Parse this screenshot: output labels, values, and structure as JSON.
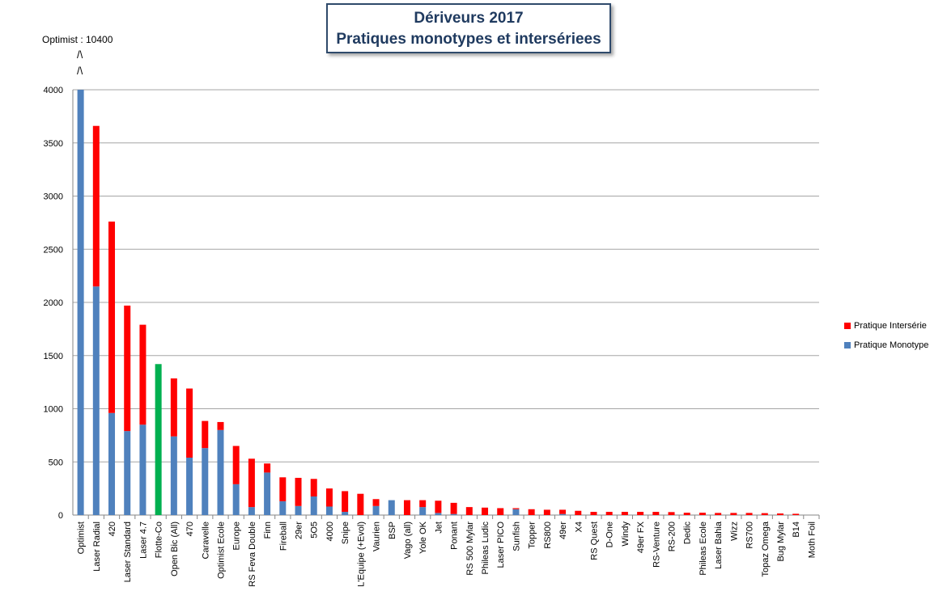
{
  "chart_data": {
    "type": "bar",
    "stacked": true,
    "title": "Dériveurs 2017",
    "subtitle": "Pratiques monotypes et intersériees",
    "note": "Optimist : 10400",
    "note_arrow": "/\\",
    "ylim": [
      0,
      4000
    ],
    "yticks": [
      0,
      500,
      1000,
      1500,
      2000,
      2500,
      3000,
      3500,
      4000
    ],
    "grid": true,
    "legend_placement": "right",
    "categories": [
      "Optimist",
      "Laser Radial",
      "420",
      "Laser Standard",
      "Laser 4.7",
      "Flotte-Co",
      "Open Bic (All)",
      "470",
      "Caravelle",
      "Optimist Ecole",
      "Europe",
      "RS Feva Double",
      "Finn",
      "Fireball",
      "29er",
      "5O5",
      "4000",
      "Snipe",
      "L'Equipe (+Evol)",
      "Vaurien",
      "BSP",
      "Vago (all)",
      "Yole OK",
      "Jet",
      "Ponant",
      "RS 500 Mylar",
      "Phileas Ludic",
      "Laser PICO",
      "Sunfish",
      "Topper",
      "RS800",
      "49er",
      "X4",
      "RS Quest",
      "D-One",
      "Windy",
      "49er FX",
      "RS-Venture",
      "RS-200",
      "Dedic",
      "Phileas Ecole",
      "Laser Bahia",
      "Wizz",
      "RS700",
      "Topaz Omega",
      "Bug Mylar",
      "B14",
      "Moth Foil"
    ],
    "series": [
      {
        "name": "Pratique Monotype",
        "color": "#4f81bd",
        "values": [
          4000,
          2150,
          960,
          790,
          850,
          0,
          740,
          540,
          630,
          800,
          290,
          75,
          400,
          130,
          85,
          175,
          80,
          30,
          0,
          85,
          140,
          0,
          75,
          20,
          10,
          0,
          0,
          0,
          55,
          0,
          0,
          10,
          0,
          0,
          0,
          0,
          0,
          0,
          0,
          0,
          0,
          0,
          0,
          0,
          0,
          0,
          0,
          0
        ]
      },
      {
        "name": "Pratique Intersérie",
        "color": "#ff0000",
        "values": [
          0,
          1510,
          1800,
          1180,
          940,
          0,
          545,
          650,
          255,
          75,
          360,
          455,
          85,
          225,
          265,
          165,
          170,
          195,
          200,
          65,
          0,
          140,
          65,
          115,
          105,
          75,
          70,
          65,
          10,
          55,
          50,
          40,
          40,
          30,
          30,
          30,
          30,
          30,
          28,
          22,
          22,
          20,
          20,
          20,
          18,
          15,
          12,
          0
        ]
      },
      {
        "name": "Flotte-Co",
        "color": "#00b050",
        "values": [
          0,
          0,
          0,
          0,
          0,
          1420,
          0,
          0,
          0,
          0,
          0,
          0,
          0,
          0,
          0,
          0,
          0,
          0,
          0,
          0,
          0,
          0,
          0,
          0,
          0,
          0,
          0,
          0,
          0,
          0,
          0,
          0,
          0,
          0,
          0,
          0,
          0,
          0,
          0,
          0,
          0,
          0,
          0,
          0,
          0,
          0,
          0,
          0
        ]
      }
    ]
  },
  "legend": [
    {
      "label": "Pratique Intersérie",
      "color": "#ff0000"
    },
    {
      "label": "Pratique Monotype",
      "color": "#4f81bd"
    }
  ]
}
